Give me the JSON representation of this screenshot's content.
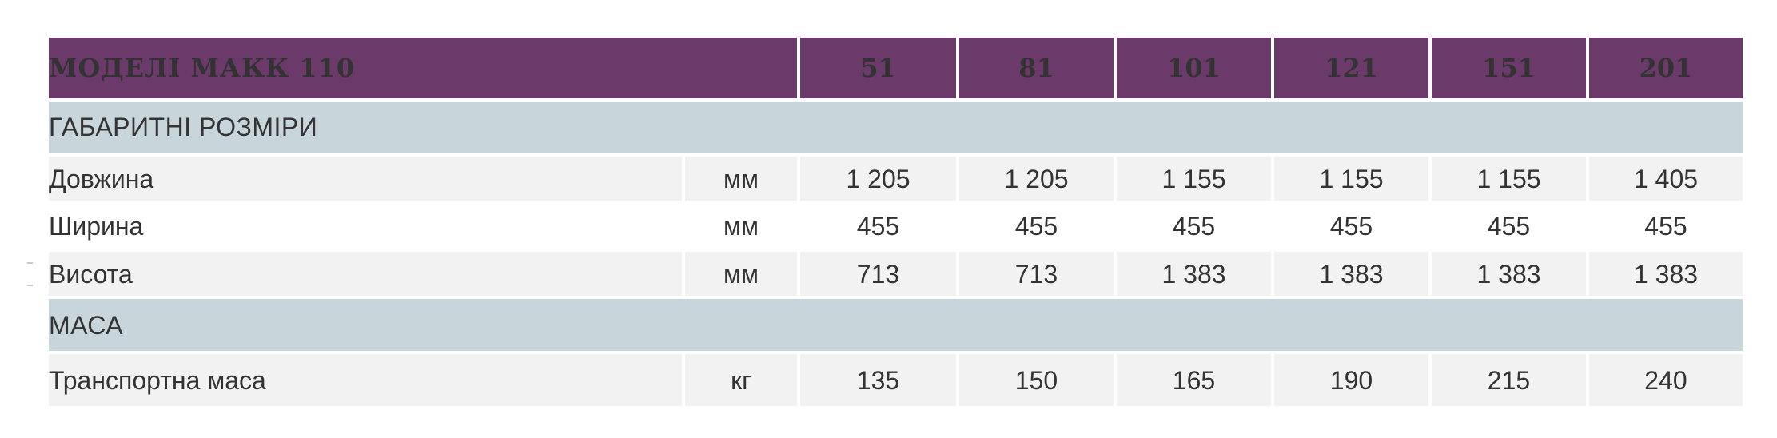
{
  "header": {
    "title": "МОДЕЛІ МАКК 110",
    "models": [
      "51",
      "81",
      "101",
      "121",
      "151",
      "201"
    ]
  },
  "sections": [
    {
      "label": "ГАБАРИТНІ РОЗМІРИ",
      "rows": [
        {
          "name": "Довжина",
          "unit": "мм",
          "values": [
            "1 205",
            "1 205",
            "1 155",
            "1 155",
            "1 155",
            "1 405"
          ]
        },
        {
          "name": "Ширина",
          "unit": "мм",
          "values": [
            "455",
            "455",
            "455",
            "455",
            "455",
            "455"
          ]
        },
        {
          "name": "Висота",
          "unit": "мм",
          "values": [
            "713",
            "713",
            "1 383",
            "1 383",
            "1 383",
            "1 383"
          ]
        }
      ]
    },
    {
      "label": "МАСА",
      "rows": [
        {
          "name": "Транспортна маса",
          "unit": "кг",
          "values": [
            "135",
            "150",
            "165",
            "190",
            "215",
            "240"
          ]
        }
      ]
    }
  ],
  "colors": {
    "header_bg": "#6b3a6a",
    "section_bg": "#c8d5db",
    "row_alt_bg": "#f2f2f2",
    "text": "#333333"
  }
}
